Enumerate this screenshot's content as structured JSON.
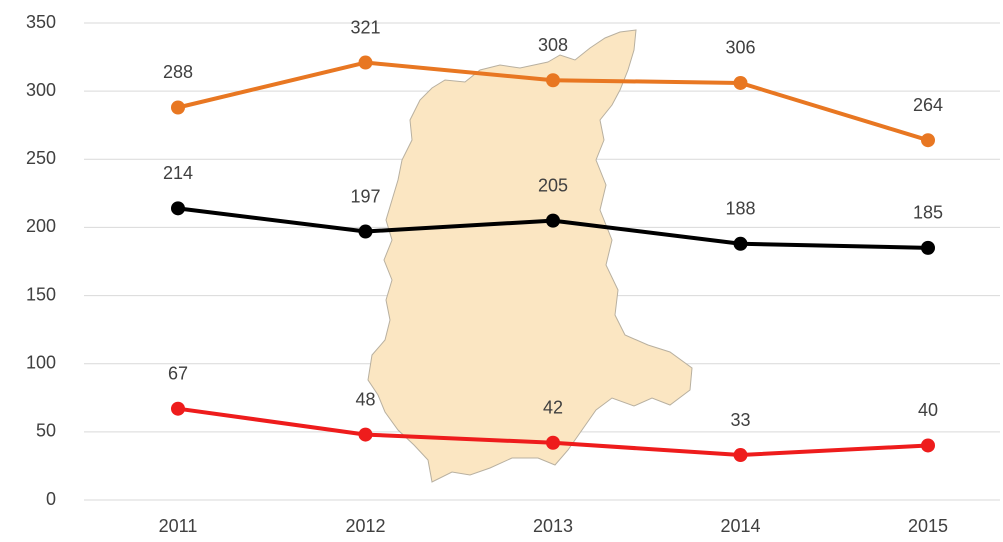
{
  "chart_data": {
    "type": "line",
    "categories": [
      "2011",
      "2012",
      "2013",
      "2014",
      "2015"
    ],
    "series": [
      {
        "color": "#e87722",
        "values": [
          288,
          321,
          308,
          306,
          264
        ]
      },
      {
        "color": "#000000",
        "values": [
          214,
          197,
          205,
          188,
          185
        ]
      },
      {
        "color": "#ee1c1c",
        "values": [
          67,
          48,
          42,
          33,
          40
        ]
      }
    ],
    "ylim": [
      0,
      350
    ],
    "yticks": [
      0,
      50,
      100,
      150,
      200,
      250,
      300,
      350
    ],
    "grid": true
  }
}
